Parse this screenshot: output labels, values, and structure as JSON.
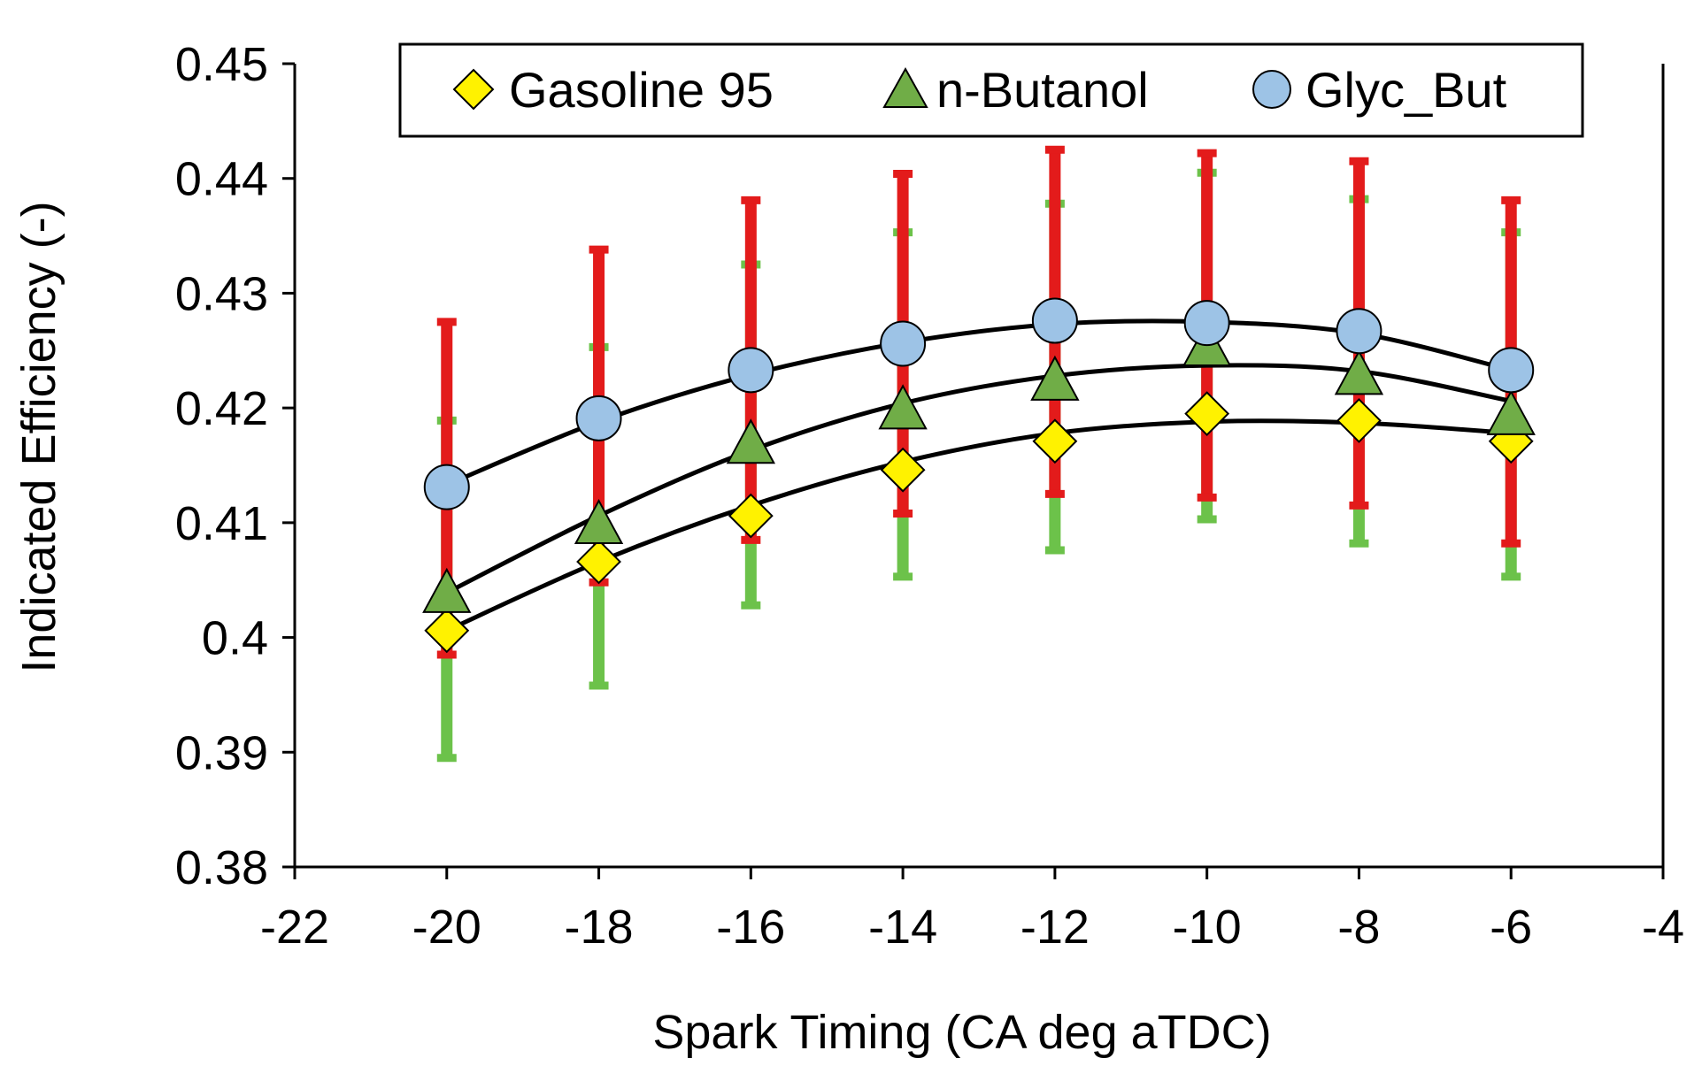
{
  "chart_data": {
    "type": "scatter",
    "title": "",
    "xlabel": "Spark Timing  (CA deg aTDC)",
    "ylabel": "Indicated Efficiency (-)",
    "xlim": [
      -22,
      -4
    ],
    "ylim": [
      0.38,
      0.45
    ],
    "x_ticks": [
      -22,
      -20,
      -18,
      -16,
      -14,
      -12,
      -10,
      -8,
      -6,
      -4
    ],
    "y_ticks": [
      0.38,
      0.39,
      0.4,
      0.41,
      0.42,
      0.43,
      0.44,
      0.45
    ],
    "x_tick_labels": [
      "-22",
      "-20",
      "-18",
      "-16",
      "-14",
      "-12",
      "-10",
      "-8",
      "-6",
      "-4"
    ],
    "y_tick_labels": [
      "0.38",
      "0.39",
      "0.4",
      "0.41",
      "0.42",
      "0.43",
      "0.44",
      "0.45"
    ],
    "grid": false,
    "legend_position": "top",
    "x": [
      -20,
      -18,
      -16,
      -14,
      -12,
      -10,
      -8,
      -6
    ],
    "series": [
      {
        "name": "Gasoline 95",
        "marker": "diamond",
        "color": "#FFF200",
        "values": [
          0.4006,
          0.4066,
          0.4106,
          0.4146,
          0.4171,
          0.4195,
          0.4189,
          0.4171
        ],
        "trend": [
          0.4006,
          0.4066,
          0.4115,
          0.4153,
          0.4178,
          0.4188,
          0.4187,
          0.4178
        ]
      },
      {
        "name": "n-Butanol",
        "marker": "triangle",
        "color": "#70AD47",
        "values": [
          0.4036,
          0.4096,
          0.4166,
          0.4196,
          0.4221,
          0.4251,
          0.4226,
          0.4191
        ],
        "trend": [
          0.4039,
          0.4106,
          0.4163,
          0.4204,
          0.4228,
          0.4237,
          0.4232,
          0.4206
        ],
        "error_color": "#6CC24A",
        "error_low": [
          0.3895,
          0.3958,
          0.4028,
          0.4053,
          0.4076,
          0.4103,
          0.4082,
          0.4053
        ],
        "error_high": [
          0.4189,
          0.4253,
          0.4325,
          0.4353,
          0.4378,
          0.4405,
          0.4382,
          0.4353
        ]
      },
      {
        "name": "Glyc_But",
        "marker": "circle",
        "color": "#9DC3E6",
        "values": [
          0.4131,
          0.4191,
          0.4233,
          0.4256,
          0.4276,
          0.4274,
          0.4267,
          0.4233
        ],
        "trend": [
          0.4133,
          0.4188,
          0.4229,
          0.4257,
          0.4273,
          0.4275,
          0.4265,
          0.4233
        ],
        "error_color": "#E31B1B",
        "error_low": [
          0.3985,
          0.4048,
          0.4085,
          0.4108,
          0.4125,
          0.4122,
          0.4115,
          0.4082
        ],
        "error_high": [
          0.4275,
          0.4338,
          0.4381,
          0.4404,
          0.4425,
          0.4422,
          0.4415,
          0.4381
        ]
      }
    ]
  }
}
